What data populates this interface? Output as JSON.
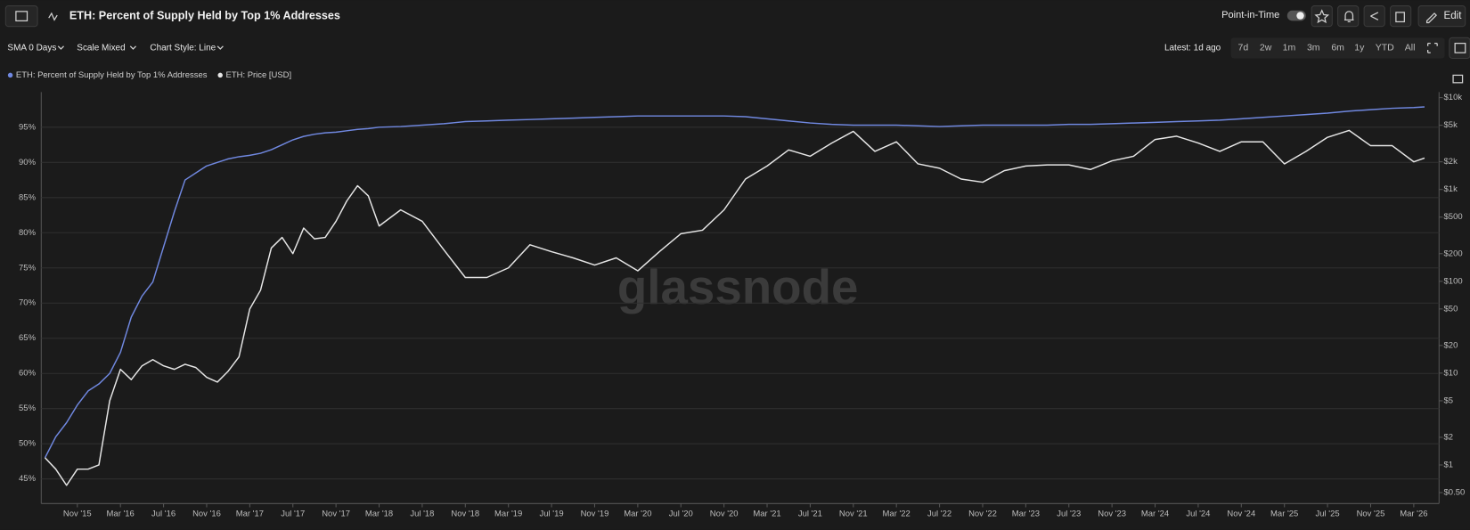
{
  "ui": {
    "sma": "SMA 0 Days",
    "scale": "Scale Mixed",
    "style": "Chart Style: Line",
    "point_in_time": "Point-in-Time",
    "edit": "Edit",
    "latest": "Latest: 1d ago",
    "ranges": [
      "7d",
      "2w",
      "1m",
      "3m",
      "6m",
      "1y",
      "YTD",
      "All"
    ],
    "watermark": "glassnode"
  },
  "chart_data": {
    "type": "line",
    "title": "ETH: Percent of Supply Held by Top 1% Addresses",
    "x": [
      "2015-08",
      "2015-09",
      "2015-10",
      "2015-11",
      "2015-12",
      "2016-01",
      "2016-02",
      "2016-03",
      "2016-04",
      "2016-05",
      "2016-06",
      "2016-07",
      "2016-08",
      "2016-09",
      "2016-10",
      "2016-11",
      "2016-12",
      "2017-01",
      "2017-02",
      "2017-03",
      "2017-04",
      "2017-05",
      "2017-06",
      "2017-07",
      "2017-08",
      "2017-09",
      "2017-10",
      "2017-11",
      "2017-12",
      "2018-01",
      "2018-02",
      "2018-03",
      "2018-05",
      "2018-07",
      "2018-09",
      "2018-11",
      "2019-01",
      "2019-03",
      "2019-05",
      "2019-07",
      "2019-09",
      "2019-11",
      "2020-01",
      "2020-03",
      "2020-05",
      "2020-07",
      "2020-09",
      "2020-11",
      "2021-01",
      "2021-03",
      "2021-05",
      "2021-07",
      "2021-09",
      "2021-11",
      "2022-01",
      "2022-03",
      "2022-05",
      "2022-07",
      "2022-09",
      "2022-11",
      "2023-01",
      "2023-03",
      "2023-05",
      "2023-07",
      "2023-09",
      "2023-11",
      "2024-01",
      "2024-03",
      "2024-05",
      "2024-07",
      "2024-09",
      "2024-11",
      "2025-01",
      "2025-03",
      "2025-05",
      "2025-07",
      "2025-09",
      "2025-11",
      "2026-01",
      "2026-03",
      "2026-04"
    ],
    "series": [
      {
        "name": "ETH: Percent of Supply Held by Top 1% Addresses",
        "color": "#7088e0",
        "axis": "y",
        "values": [
          48,
          51,
          53,
          55.5,
          57.5,
          58.5,
          60,
          63,
          68,
          71,
          73,
          78,
          83,
          87.5,
          88.5,
          89.5,
          90,
          90.5,
          90.8,
          91,
          91.3,
          91.8,
          92.5,
          93.2,
          93.7,
          94,
          94.2,
          94.3,
          94.5,
          94.7,
          94.8,
          95,
          95.1,
          95.3,
          95.5,
          95.8,
          95.9,
          96.0,
          96.1,
          96.2,
          96.3,
          96.4,
          96.5,
          96.6,
          96.6,
          96.6,
          96.6,
          96.6,
          96.5,
          96.2,
          95.9,
          95.6,
          95.4,
          95.3,
          95.3,
          95.3,
          95.2,
          95.1,
          95.2,
          95.3,
          95.3,
          95.3,
          95.3,
          95.4,
          95.4,
          95.5,
          95.6,
          95.7,
          95.8,
          95.9,
          96.0,
          96.2,
          96.4,
          96.6,
          96.8,
          97.0,
          97.3,
          97.5,
          97.7,
          97.8,
          97.9
        ]
      },
      {
        "name": "ETH: Price [USD]",
        "color": "#e6e6e6",
        "axis": "y2",
        "values": [
          1.2,
          0.9,
          0.6,
          0.9,
          0.9,
          1.0,
          5,
          11,
          8.5,
          12,
          14,
          12,
          11,
          12.5,
          11.5,
          9,
          8,
          10.5,
          15,
          50,
          80,
          230,
          300,
          200,
          380,
          290,
          300,
          450,
          750,
          1100,
          850,
          400,
          600,
          450,
          220,
          110,
          110,
          140,
          250,
          210,
          180,
          150,
          180,
          130,
          210,
          330,
          360,
          600,
          1300,
          1800,
          2700,
          2300,
          3200,
          4300,
          2600,
          3300,
          1900,
          1700,
          1300,
          1200,
          1600,
          1800,
          1850,
          1850,
          1650,
          2050,
          2300,
          3500,
          3800,
          3200,
          2600,
          3300,
          3300,
          1900,
          2600,
          3700,
          4400,
          3000,
          3000,
          2000,
          2200
        ]
      }
    ],
    "xlim": [
      "2015-08",
      "2026-05"
    ],
    "xticks": [
      {
        "value": "2015-11",
        "label": "Nov '15"
      },
      {
        "value": "2016-03",
        "label": "Mar '16"
      },
      {
        "value": "2016-07",
        "label": "Jul '16"
      },
      {
        "value": "2016-11",
        "label": "Nov '16"
      },
      {
        "value": "2017-03",
        "label": "Mar '17"
      },
      {
        "value": "2017-07",
        "label": "Jul '17"
      },
      {
        "value": "2017-11",
        "label": "Nov '17"
      },
      {
        "value": "2018-03",
        "label": "Mar '18"
      },
      {
        "value": "2018-07",
        "label": "Jul '18"
      },
      {
        "value": "2018-11",
        "label": "Nov '18"
      },
      {
        "value": "2019-03",
        "label": "Mar '19"
      },
      {
        "value": "2019-07",
        "label": "Jul '19"
      },
      {
        "value": "2019-11",
        "label": "Nov '19"
      },
      {
        "value": "2020-03",
        "label": "Mar '20"
      },
      {
        "value": "2020-07",
        "label": "Jul '20"
      },
      {
        "value": "2020-11",
        "label": "Nov '20"
      },
      {
        "value": "2021-03",
        "label": "Mar '21"
      },
      {
        "value": "2021-07",
        "label": "Jul '21"
      },
      {
        "value": "2021-11",
        "label": "Nov '21"
      },
      {
        "value": "2022-03",
        "label": "Mar '22"
      },
      {
        "value": "2022-07",
        "label": "Jul '22"
      },
      {
        "value": "2022-11",
        "label": "Nov '22"
      },
      {
        "value": "2023-03",
        "label": "Mar '23"
      },
      {
        "value": "2023-07",
        "label": "Jul '23"
      },
      {
        "value": "2023-11",
        "label": "Nov '23"
      },
      {
        "value": "2024-03",
        "label": "Mar '24"
      },
      {
        "value": "2024-07",
        "label": "Jul '24"
      },
      {
        "value": "2024-11",
        "label": "Nov '24"
      },
      {
        "value": "2025-03",
        "label": "Mar '25"
      },
      {
        "value": "2025-07",
        "label": "Jul '25"
      },
      {
        "value": "2025-11",
        "label": "Nov '25"
      },
      {
        "value": "2026-03",
        "label": "Mar '26"
      }
    ],
    "ylim": [
      41.5,
      100
    ],
    "yticks": [
      {
        "value": 45,
        "label": "45%"
      },
      {
        "value": 50,
        "label": "50%"
      },
      {
        "value": 55,
        "label": "55%"
      },
      {
        "value": 60,
        "label": "60%"
      },
      {
        "value": 65,
        "label": "65%"
      },
      {
        "value": 70,
        "label": "70%"
      },
      {
        "value": 75,
        "label": "75%"
      },
      {
        "value": 80,
        "label": "80%"
      },
      {
        "value": 85,
        "label": "85%"
      },
      {
        "value": 90,
        "label": "90%"
      },
      {
        "value": 95,
        "label": "95%"
      }
    ],
    "y2lim": [
      0.38,
      11500
    ],
    "y2scale": "log",
    "y2ticks": [
      {
        "value": 0.5,
        "label": "$0.50"
      },
      {
        "value": 1,
        "label": "$1"
      },
      {
        "value": 2,
        "label": "$2"
      },
      {
        "value": 5,
        "label": "$5"
      },
      {
        "value": 10,
        "label": "$10"
      },
      {
        "value": 20,
        "label": "$20"
      },
      {
        "value": 50,
        "label": "$50"
      },
      {
        "value": 100,
        "label": "$100"
      },
      {
        "value": 200,
        "label": "$200"
      },
      {
        "value": 500,
        "label": "$500"
      },
      {
        "value": 1000,
        "label": "$1k"
      },
      {
        "value": 2000,
        "label": "$2k"
      },
      {
        "value": 5000,
        "label": "$5k"
      },
      {
        "value": 10000,
        "label": "$10k"
      }
    ],
    "grid": true,
    "legend": "top-left"
  }
}
